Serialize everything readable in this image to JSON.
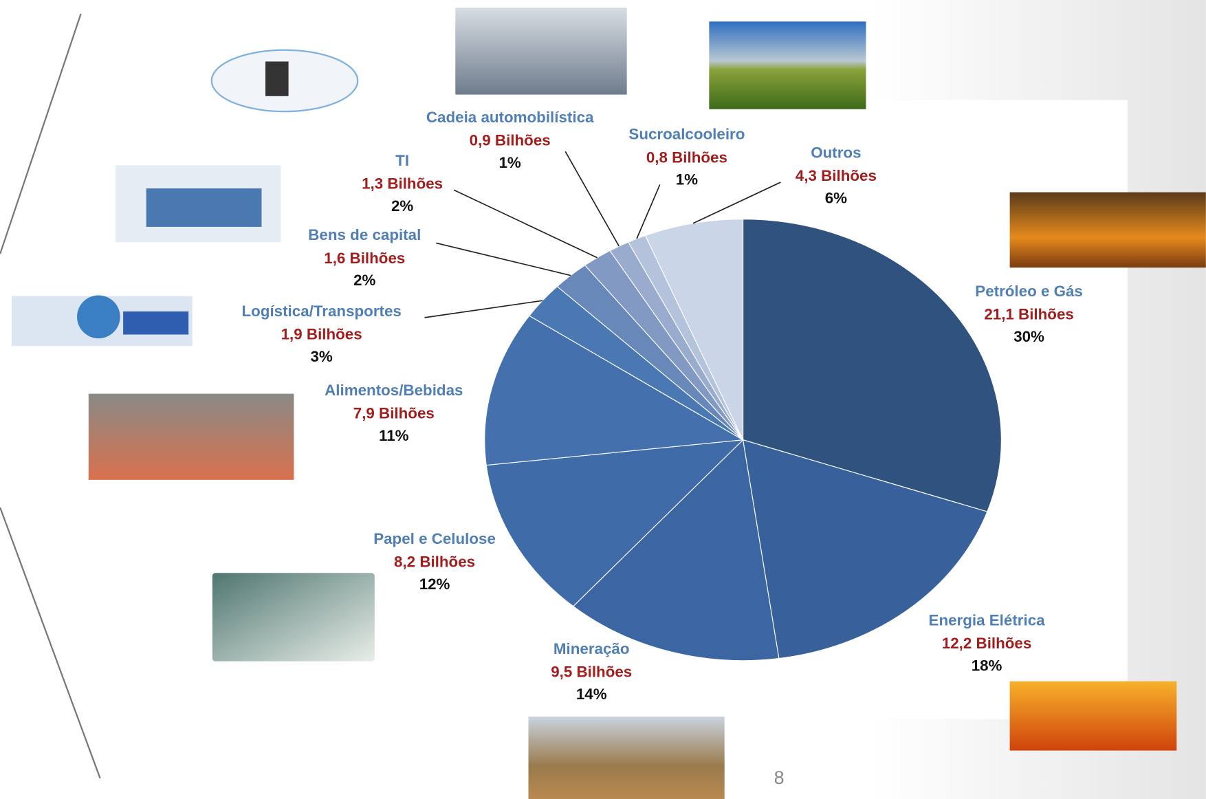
{
  "chart_data": {
    "type": "pie",
    "categories": [
      "Petróleo e Gás",
      "Energia Elétrica",
      "Mineração",
      "Papel e Celulose",
      "Alimentos/Bebidas",
      "Logística/Transportes",
      "Bens de capital",
      "TI",
      "Cadeia automobilística",
      "Sucroalcooleiro",
      "Outros"
    ],
    "values": [
      21.1,
      12.2,
      9.5,
      8.2,
      7.9,
      1.9,
      1.6,
      1.3,
      0.9,
      0.8,
      4.3
    ],
    "value_labels": [
      "21,1 Bilhões",
      "12,2 Bilhões",
      "9,5 Bilhões",
      "8,2 Bilhões",
      "7,9 Bilhões",
      "1,9 Bilhões",
      "1,6 Bilhões",
      "1,3 Bilhões",
      "0,9 Bilhões",
      "0,8 Bilhões",
      "4,3 Bilhões"
    ],
    "percent_labels": [
      "30%",
      "18%",
      "14%",
      "12%",
      "11%",
      "3%",
      "2%",
      "2%",
      "1%",
      "1%",
      "6%"
    ],
    "colors": [
      "#30527f",
      "#38609a",
      "#3b66a2",
      "#3f6ba8",
      "#4471ae",
      "#4a78b2",
      "#6788b9",
      "#8199c3",
      "#9aacce",
      "#b4c2dc",
      "#cbd5e8"
    ]
  },
  "page_number": "8"
}
